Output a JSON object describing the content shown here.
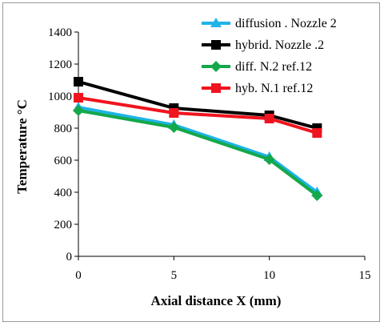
{
  "chart_data": {
    "type": "line",
    "title": "",
    "xlabel": "Axial  distance  X (mm)",
    "ylabel": "Temperature   °C",
    "xlim": [
      0,
      15
    ],
    "ylim": [
      0,
      1400
    ],
    "xticks": [
      0,
      5,
      10,
      15
    ],
    "yticks": [
      0,
      200,
      400,
      600,
      800,
      1000,
      1200,
      1400
    ],
    "grid": false,
    "legend_position": "top-right",
    "series": [
      {
        "name": "diffusion . Nozzle 2",
        "color": "#1EB4E6",
        "marker": "triangle",
        "x": [
          0,
          5,
          10,
          12.5
        ],
        "y": [
          930,
          820,
          620,
          400
        ]
      },
      {
        "name": "hybrid. Nozzle .2",
        "color": "#000000",
        "marker": "square",
        "x": [
          0,
          5,
          10,
          12.5
        ],
        "y": [
          1090,
          925,
          880,
          800
        ]
      },
      {
        "name": "diff. N.2 ref.12",
        "color": "#14A84B",
        "marker": "diamond",
        "x": [
          0,
          5,
          10,
          12.5
        ],
        "y": [
          910,
          805,
          605,
          380
        ]
      },
      {
        "name": "hyb. N.1 ref.12",
        "color": "#F0141E",
        "marker": "square",
        "x": [
          0,
          5,
          10,
          12.5
        ],
        "y": [
          990,
          895,
          860,
          770
        ]
      }
    ]
  }
}
